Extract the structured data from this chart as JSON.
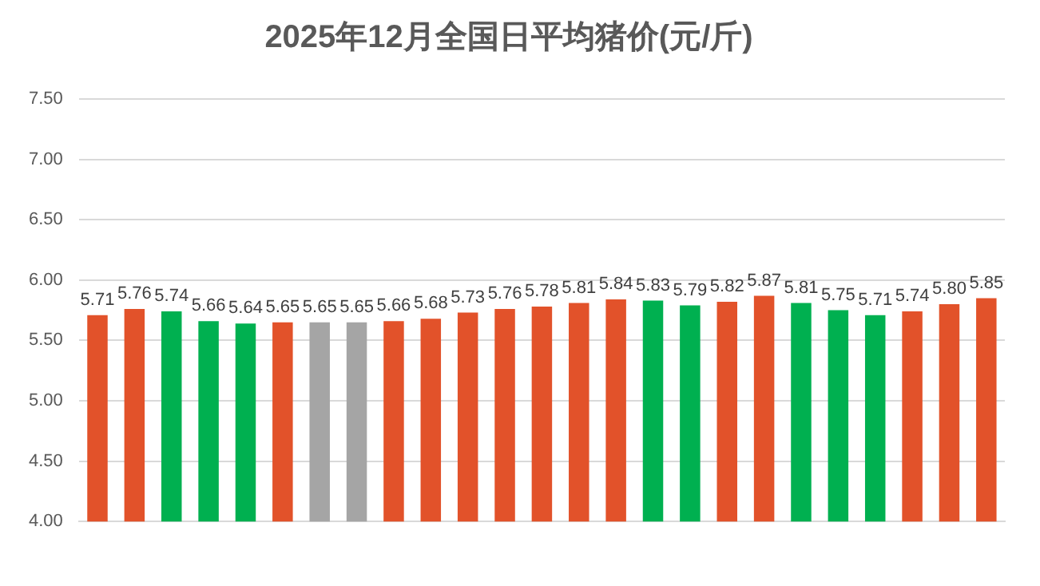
{
  "chart_data": {
    "type": "bar",
    "title": "2025年12月全国日平均猪价(元/斤)",
    "categories": [
      null,
      null,
      null,
      null,
      null,
      null,
      null,
      null,
      null,
      null,
      null,
      null,
      null,
      null,
      null,
      null,
      null,
      null,
      null,
      null,
      null,
      null,
      null,
      null,
      null
    ],
    "values": [
      5.71,
      5.76,
      5.74,
      5.66,
      5.64,
      5.65,
      5.65,
      5.65,
      5.66,
      5.68,
      5.73,
      5.76,
      5.78,
      5.81,
      5.84,
      5.83,
      5.79,
      5.82,
      5.87,
      5.81,
      5.75,
      5.71,
      5.74,
      5.8,
      5.85
    ],
    "colors": [
      "#e2522a",
      "#e2522a",
      "#00b050",
      "#00b050",
      "#00b050",
      "#e2522a",
      "#a5a5a5",
      "#a5a5a5",
      "#e2522a",
      "#e2522a",
      "#e2522a",
      "#e2522a",
      "#e2522a",
      "#e2522a",
      "#e2522a",
      "#00b050",
      "#00b050",
      "#e2522a",
      "#e2522a",
      "#00b050",
      "#00b050",
      "#00b050",
      "#e2522a",
      "#e2522a",
      "#e2522a"
    ],
    "value_labels": [
      "5.71",
      "5.76",
      "5.74",
      "5.66",
      "5.64",
      "5.65",
      "5.65",
      "5.65",
      "5.66",
      "5.68",
      "5.73",
      "5.76",
      "5.78",
      "5.81",
      "5.84",
      "5.83",
      "5.79",
      "5.82",
      "5.87",
      "5.81",
      "5.75",
      "5.71",
      "5.74",
      "5.80",
      "5.85"
    ],
    "ylim": [
      4,
      7.5
    ],
    "yticks": [
      {
        "value": 4,
        "label": "4.00"
      },
      {
        "value": 4.5,
        "label": "4.50"
      },
      {
        "value": 5,
        "label": "5.00"
      },
      {
        "value": 5.5,
        "label": "5.50"
      },
      {
        "value": 6,
        "label": "6.00"
      },
      {
        "value": 6.5,
        "label": "6.50"
      },
      {
        "value": 7,
        "label": "7.00"
      },
      {
        "value": 7.5,
        "label": "7.50"
      }
    ],
    "grid": "y",
    "legend": false
  }
}
